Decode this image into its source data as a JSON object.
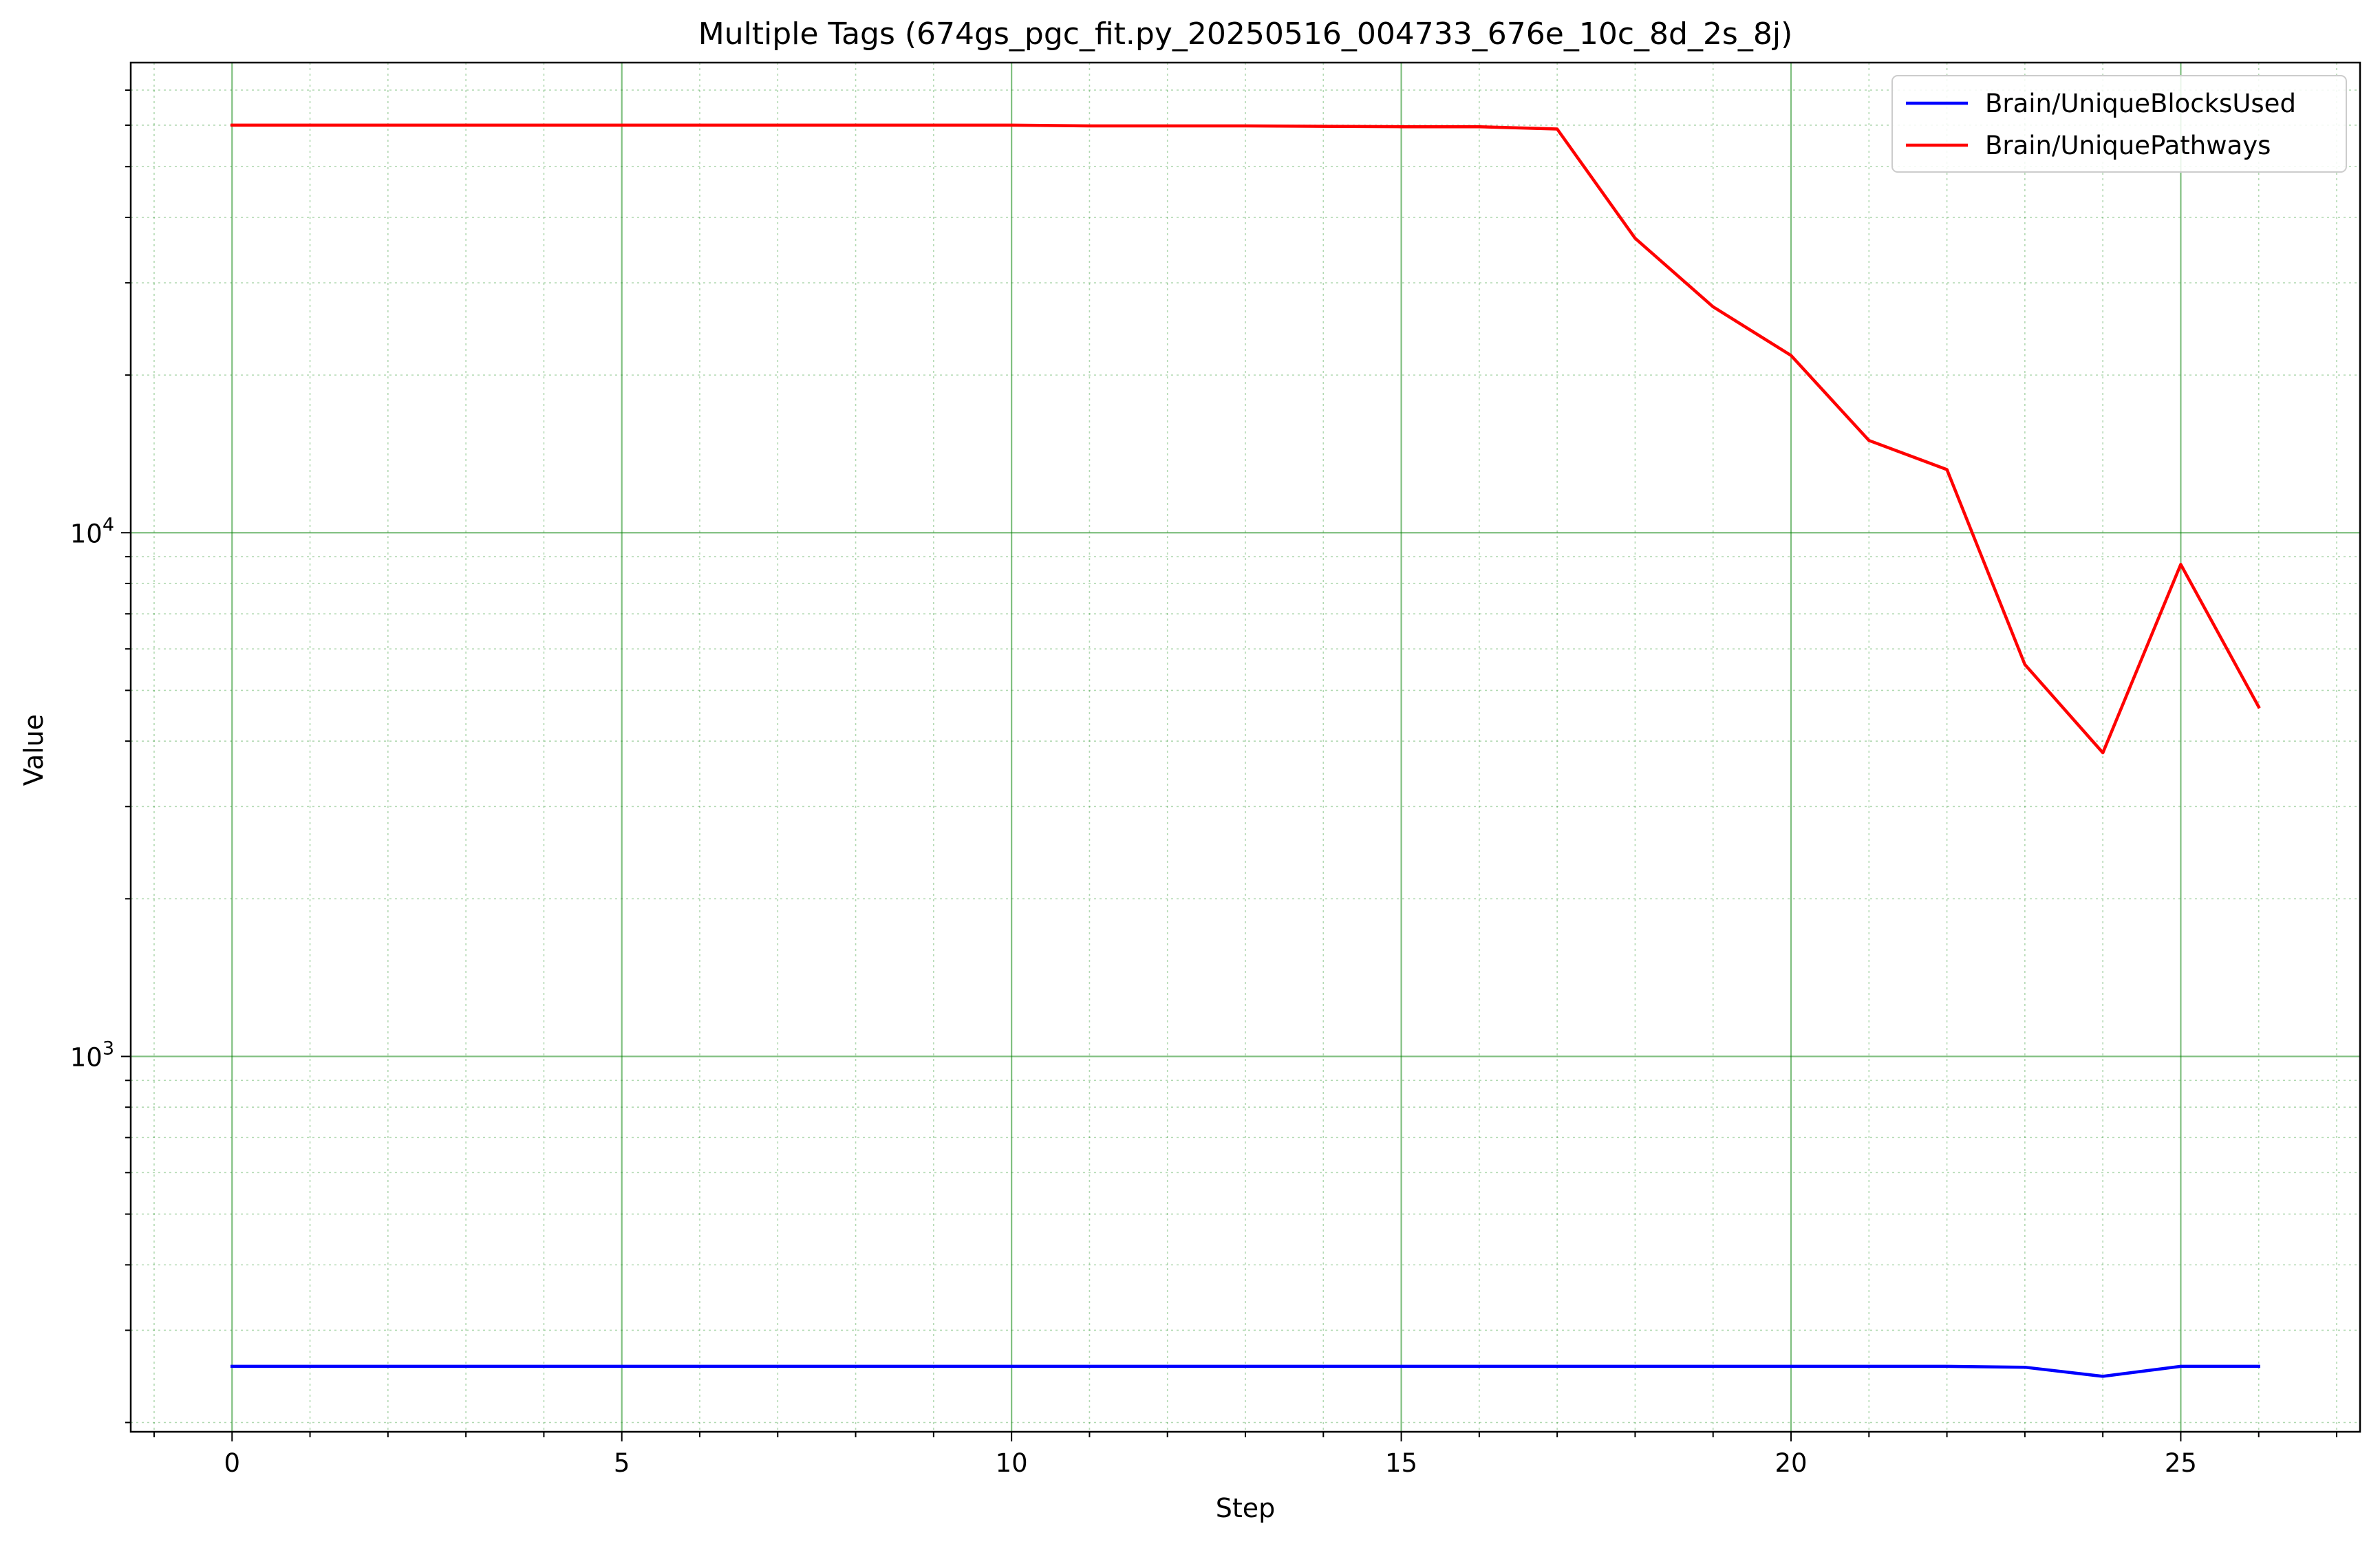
{
  "chart_data": {
    "type": "line",
    "title": "Multiple Tags (674gs_pgc_fit.py_20250516_004733_676e_10c_8d_2s_8j)",
    "xlabel": "Step",
    "ylabel": "Value",
    "yscale": "log",
    "xlim": [
      -1.3,
      27.3
    ],
    "ylim": [
      192,
      79000
    ],
    "x_ticks": [
      0,
      5,
      10,
      15,
      20,
      25
    ],
    "y_ticks": [
      {
        "value": 1000,
        "base": "10",
        "exp": "3"
      },
      {
        "value": 10000,
        "base": "10",
        "exp": "4"
      }
    ],
    "grid": {
      "major": true,
      "minor": true,
      "color": "#008000"
    },
    "legend_position": "top-right",
    "x": [
      0,
      1,
      2,
      3,
      4,
      5,
      6,
      7,
      8,
      9,
      10,
      11,
      12,
      13,
      14,
      15,
      16,
      17,
      18,
      19,
      20,
      21,
      22,
      23,
      24,
      25,
      26
    ],
    "series": [
      {
        "name": "Brain/UniqueBlocksUsed",
        "color": "#0000ff",
        "values": [
          256,
          256,
          256,
          256,
          256,
          256,
          256,
          256,
          256,
          256,
          256,
          256,
          256,
          256,
          256,
          256,
          256,
          256,
          256,
          256,
          256,
          256,
          256,
          255,
          245,
          256,
          256
        ]
      },
      {
        "name": "Brain/UniquePathways",
        "color": "#ff0000",
        "values": [
          60000,
          60000,
          60000,
          60000,
          60000,
          60000,
          60000,
          60000,
          60000,
          60000,
          60000,
          59800,
          59800,
          59800,
          59700,
          59600,
          59600,
          59000,
          36500,
          27000,
          21800,
          15000,
          13200,
          5600,
          3800,
          8700,
          4650
        ]
      }
    ]
  }
}
